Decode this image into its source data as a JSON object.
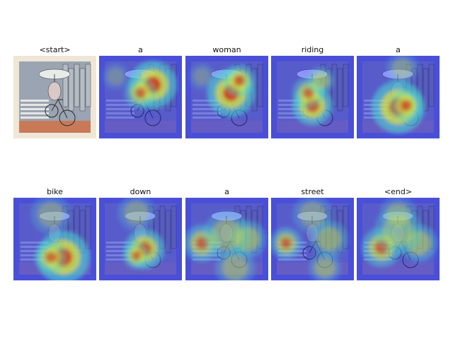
{
  "figure": {
    "panels": [
      {
        "word": "<start>",
        "kind": "photo"
      },
      {
        "word": "a",
        "kind": "heatmap",
        "hot": [
          [
            0.65,
            0.35,
            0.18,
            1.0
          ],
          [
            0.5,
            0.45,
            0.12,
            0.7
          ],
          [
            0.2,
            0.25,
            0.1,
            0.3
          ]
        ]
      },
      {
        "word": "woman",
        "kind": "heatmap",
        "hot": [
          [
            0.55,
            0.45,
            0.18,
            1.0
          ],
          [
            0.65,
            0.3,
            0.12,
            0.8
          ],
          [
            0.2,
            0.25,
            0.1,
            0.3
          ]
        ]
      },
      {
        "word": "riding",
        "kind": "heatmap",
        "hot": [
          [
            0.5,
            0.6,
            0.15,
            1.0
          ],
          [
            0.45,
            0.45,
            0.12,
            0.7
          ],
          [
            0.6,
            0.3,
            0.1,
            0.6
          ]
        ]
      },
      {
        "word": "a",
        "kind": "heatmap",
        "hot": [
          [
            0.5,
            0.62,
            0.2,
            1.0
          ],
          [
            0.6,
            0.6,
            0.12,
            0.8
          ],
          [
            0.55,
            0.15,
            0.12,
            0.4
          ]
        ]
      },
      {
        "word": "bike",
        "kind": "heatmap",
        "hot": [
          [
            0.6,
            0.72,
            0.2,
            1.0
          ],
          [
            0.45,
            0.72,
            0.12,
            0.7
          ],
          [
            0.45,
            0.2,
            0.15,
            0.4
          ]
        ]
      },
      {
        "word": "down",
        "kind": "heatmap",
        "hot": [
          [
            0.55,
            0.62,
            0.15,
            0.9
          ],
          [
            0.45,
            0.7,
            0.1,
            0.7
          ],
          [
            0.45,
            0.18,
            0.14,
            0.4
          ]
        ]
      },
      {
        "word": "a",
        "kind": "heatmap",
        "hot": [
          [
            0.2,
            0.55,
            0.14,
            0.7
          ],
          [
            0.75,
            0.5,
            0.14,
            0.6
          ],
          [
            0.5,
            0.45,
            0.18,
            0.5
          ],
          [
            0.6,
            0.85,
            0.15,
            0.5
          ]
        ]
      },
      {
        "word": "street",
        "kind": "heatmap",
        "hot": [
          [
            0.18,
            0.55,
            0.12,
            0.7
          ],
          [
            0.7,
            0.5,
            0.14,
            0.55
          ],
          [
            0.5,
            0.2,
            0.15,
            0.4
          ],
          [
            0.65,
            0.85,
            0.12,
            0.5
          ]
        ]
      },
      {
        "word": "<end>",
        "kind": "heatmap",
        "hot": [
          [
            0.3,
            0.6,
            0.15,
            0.75
          ],
          [
            0.75,
            0.55,
            0.14,
            0.6
          ],
          [
            0.5,
            0.4,
            0.18,
            0.5
          ],
          [
            0.5,
            0.2,
            0.14,
            0.4
          ]
        ]
      }
    ],
    "colors": {
      "heat_low": "#4a4fd8",
      "heat_mid": "#48e0d0",
      "heat_hot": "#e8e030",
      "heat_peak": "#d02818",
      "photo_frame": "#efe6d6"
    }
  }
}
